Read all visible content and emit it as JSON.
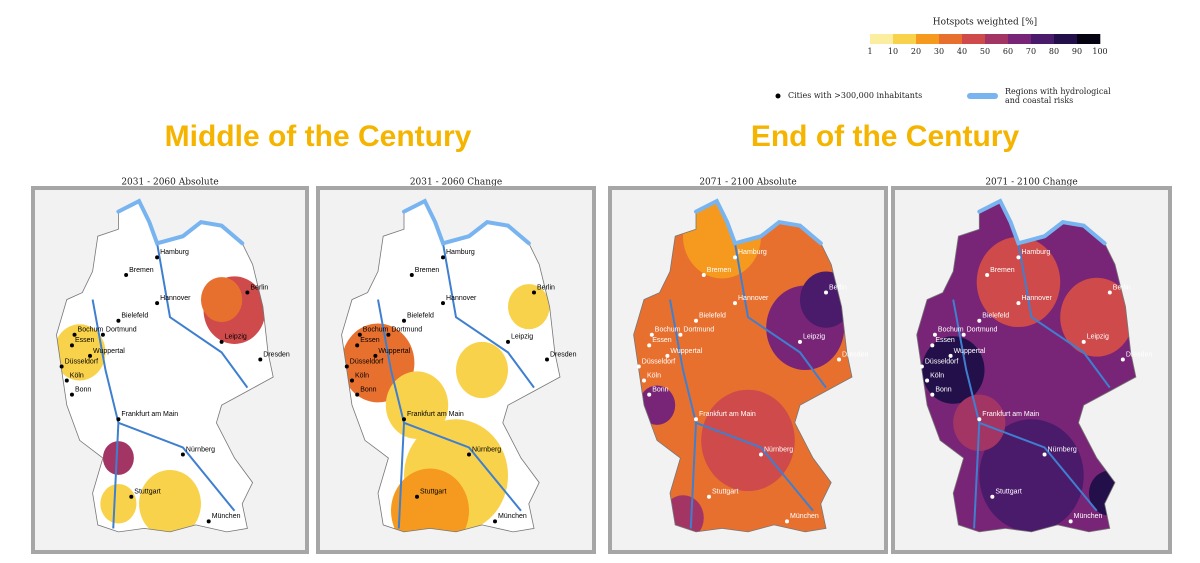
{
  "legend": {
    "title": "Hotspots weighted [%]",
    "ticks": [
      1,
      10,
      20,
      30,
      40,
      50,
      60,
      70,
      80,
      90,
      100
    ],
    "colors": [
      "#fbeea0",
      "#f9d24c",
      "#f59a1e",
      "#e8702f",
      "#cf4a4a",
      "#a33565",
      "#782577",
      "#4a1a6b",
      "#23104a",
      "#050312"
    ]
  },
  "key": {
    "cities": "Cities with >300,000 inhabitants",
    "regions": [
      "Regions with hydrological",
      "and coastal risks"
    ]
  },
  "headings": [
    "Middle of the Century",
    "End of the Century"
  ],
  "panels": [
    {
      "title": "2031 - 2060 Absolute"
    },
    {
      "title": "2031 - 2060 Change"
    },
    {
      "title": "2071 - 2100 Absolute"
    },
    {
      "title": "2071 - 2100 Change"
    }
  ],
  "cities": [
    "Hamburg",
    "Bremen",
    "Hannover",
    "Berlin",
    "Bielefeld",
    "Dortmund",
    "Bochum",
    "Essen",
    "Wuppertal",
    "Düsseldorf",
    "Köln",
    "Bonn",
    "Leipzig",
    "Dresden",
    "Frankfurt am Main",
    "Nürnberg",
    "Stuttgart",
    "München"
  ]
}
